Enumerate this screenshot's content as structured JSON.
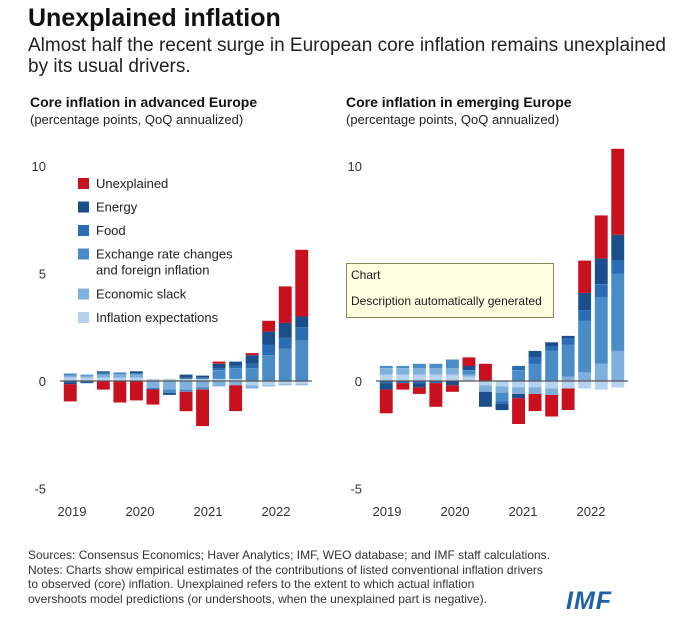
{
  "header": {
    "title": "Unexplained inflation",
    "subtitle": "Almost half the recent surge in European core inflation remains unexplained by its usual drivers."
  },
  "panels": [
    {
      "title": "Core inflation in advanced  Europe",
      "subtitle": "(percentage points, QoQ annualized)"
    },
    {
      "title": "Core inflation in emerging Europe",
      "subtitle": "(percentage points, QoQ annualized)"
    }
  ],
  "legend": {
    "items": [
      {
        "key": "unexplained",
        "lines": [
          "Unexplained"
        ]
      },
      {
        "key": "energy",
        "lines": [
          "Energy"
        ]
      },
      {
        "key": "food",
        "lines": [
          "Food"
        ]
      },
      {
        "key": "exchange",
        "lines": [
          "Exchange rate changes",
          "and foreign inflation"
        ]
      },
      {
        "key": "slack",
        "lines": [
          "Economic slack"
        ]
      },
      {
        "key": "expectations",
        "lines": [
          "Inflation expectations"
        ]
      }
    ]
  },
  "tooltip": {
    "line1": "Chart",
    "line2": "Description automatically generated"
  },
  "footer": {
    "lines": [
      "Sources: Consensus Economics; Haver Analytics; IMF, WEO database; and IMF staff calculations.",
      "Notes: Charts show empirical estimates of the contributions of listed conventional inflation drivers",
      "to observed (core) inflation. Unexplained refers to the extent to which actual inflation",
      "overshoots model predictions (or undershoots, when the unexplained part is negative)."
    ],
    "logo": "IMF"
  },
  "chart_data": [
    {
      "type": "bar",
      "stacked": true,
      "title": "Core inflation in advanced  Europe",
      "subtitle": "(percentage points, QoQ annualized)",
      "categories": [
        "2019Q1",
        "2019Q2",
        "2019Q3",
        "2019Q4",
        "2020Q1",
        "2020Q2",
        "2020Q3",
        "2020Q4",
        "2021Q1",
        "2021Q2",
        "2021Q3",
        "2021Q4",
        "2022Q1",
        "2022Q2",
        "2022Q3"
      ],
      "x_tick_labels": [
        "2019",
        "2020",
        "2021",
        "2022"
      ],
      "ylim": [
        -5,
        10
      ],
      "yticks": [
        -5,
        0,
        5,
        10
      ],
      "series": [
        {
          "name": "Inflation expectations",
          "values": [
            0.15,
            0.15,
            0.15,
            0.15,
            0.15,
            0.1,
            0.1,
            0.1,
            0.1,
            0.1,
            0.1,
            -0.2,
            -0.2,
            -0.15,
            -0.15
          ]
        },
        {
          "name": "Economic slack",
          "values": [
            0.1,
            0.1,
            0.15,
            0.15,
            0.15,
            -0.35,
            -0.4,
            -0.4,
            -0.3,
            -0.25,
            -0.2,
            -0.15,
            -0.05,
            -0.05,
            -0.05
          ]
        },
        {
          "name": "Exchange rate changes and foreign inflation",
          "values": [
            0.1,
            0.05,
            0.05,
            0.1,
            0.05,
            0,
            -0.15,
            -0.1,
            -0.1,
            0.4,
            0.5,
            0.6,
            1.2,
            1.5,
            1.9
          ]
        },
        {
          "name": "Food",
          "values": [
            -0.05,
            -0.05,
            0.05,
            0,
            0,
            0,
            0,
            0.05,
            0.05,
            0.1,
            0.1,
            0.2,
            0.5,
            0.5,
            0.6
          ]
        },
        {
          "name": "Energy",
          "values": [
            -0.1,
            -0.05,
            0.05,
            0,
            0.1,
            -0.05,
            -0.1,
            0.15,
            0.1,
            0.2,
            0.2,
            0.4,
            0.6,
            0.7,
            0.5
          ]
        },
        {
          "name": "Unexplained",
          "values": [
            -0.8,
            0,
            -0.4,
            -1,
            -0.9,
            -0.7,
            0,
            -0.9,
            -1.7,
            0.1,
            -1.2,
            0.1,
            0.5,
            1.7,
            3.1
          ]
        }
      ]
    },
    {
      "type": "bar",
      "stacked": true,
      "title": "Core inflation in emerging Europe",
      "subtitle": "(percentage points, QoQ annualized)",
      "categories": [
        "2019Q1",
        "2019Q2",
        "2019Q3",
        "2019Q4",
        "2020Q1",
        "2020Q2",
        "2020Q3",
        "2020Q4",
        "2021Q1",
        "2021Q2",
        "2021Q3",
        "2021Q4",
        "2022Q1",
        "2022Q2",
        "2022Q3"
      ],
      "x_tick_labels": [
        "2019",
        "2020",
        "2021",
        "2022"
      ],
      "ylim": [
        -5,
        10
      ],
      "yticks": [
        -5,
        0,
        5,
        10
      ],
      "series": [
        {
          "name": "Inflation expectations",
          "values": [
            0.3,
            0.3,
            0.3,
            0.3,
            0.3,
            0.2,
            -0.2,
            -0.25,
            -0.3,
            -0.3,
            -0.35,
            -0.35,
            -0.35,
            -0.4,
            -0.3
          ]
        },
        {
          "name": "Economic slack",
          "values": [
            0.3,
            0.3,
            0.3,
            0.3,
            0.3,
            0.1,
            -0.3,
            -0.3,
            -0.3,
            -0.3,
            -0.3,
            0.2,
            0.4,
            0.8,
            1.4
          ]
        },
        {
          "name": "Exchange rate changes and foreign inflation",
          "values": [
            0.1,
            0.1,
            0.2,
            0.2,
            0.4,
            0.2,
            0,
            -0.4,
            0.5,
            0.8,
            1.4,
            1.5,
            2.4,
            3.1,
            3.6
          ]
        },
        {
          "name": "Food",
          "values": [
            -0.1,
            -0.1,
            -0.1,
            -0.1,
            0,
            0,
            0,
            -0.1,
            0.2,
            0.3,
            0.2,
            0.3,
            0.5,
            0.6,
            0.6
          ]
        },
        {
          "name": "Energy",
          "values": [
            -0.3,
            0,
            -0.2,
            0,
            -0.2,
            0.2,
            -0.7,
            -0.3,
            -0.2,
            0.3,
            0.2,
            0.1,
            0.8,
            1.2,
            1.2
          ]
        },
        {
          "name": "Unexplained",
          "values": [
            -1.1,
            -0.3,
            -0.3,
            -1.1,
            -0.3,
            0.4,
            0.8,
            0,
            -1.2,
            -0.8,
            -1.0,
            -1.0,
            1.5,
            2.0,
            4.0
          ]
        }
      ]
    }
  ],
  "colors": {
    "unexplained": "#c8101e",
    "energy": "#1a4f8c",
    "food": "#2a6db5",
    "exchange": "#4a8cc8",
    "slack": "#7fb0dd",
    "expectations": "#b5d3ee",
    "axis": "#555555",
    "tick_text": "#333333"
  }
}
